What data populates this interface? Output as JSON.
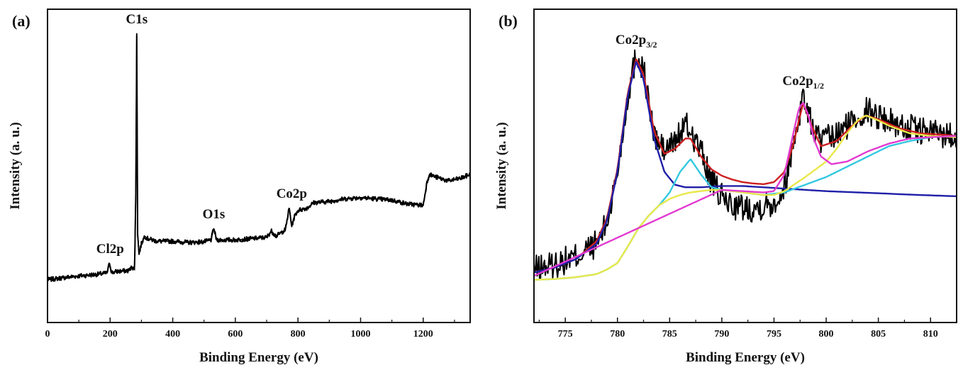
{
  "chart_data": [
    {
      "type": "line",
      "panel_label": "(a)",
      "xlabel": "Binding Energy (eV)",
      "ylabel": "Intensity (a. u.)",
      "xlim": [
        0,
        1350
      ],
      "ylim": [
        0,
        100
      ],
      "x_ticks": [
        0,
        200,
        400,
        600,
        800,
        1000,
        1200
      ],
      "y_ticks_shown": false,
      "grid": false,
      "series": [
        {
          "color": "#000000",
          "noisy": true,
          "x": [
            0,
            50,
            100,
            150,
            190,
            198,
            205,
            220,
            260,
            270,
            278,
            282,
            285,
            288,
            292,
            300,
            310,
            320,
            350,
            400,
            450,
            500,
            522,
            531,
            540,
            600,
            650,
            700,
            715,
            730,
            760,
            772,
            780,
            790,
            800,
            830,
            850,
            900,
            950,
            1000,
            1050,
            1100,
            1150,
            1200,
            1212,
            1220,
            1240,
            1280,
            1320,
            1350
          ],
          "y": [
            2,
            2.8,
            3.5,
            4,
            4.6,
            8.5,
            4.8,
            5.2,
            5.6,
            7,
            6,
            35,
            98,
            20,
            12,
            16,
            19,
            18,
            17,
            17,
            16.5,
            16.8,
            17.5,
            22,
            17.5,
            17.5,
            18,
            18.5,
            21,
            19,
            21.5,
            30,
            23,
            27,
            29,
            30,
            32,
            32.5,
            33.5,
            34,
            33.5,
            33,
            31.5,
            31,
            40,
            43,
            42,
            40.5,
            41.5,
            43
          ]
        }
      ],
      "annotations": [
        {
          "text": "Cl2p",
          "x": 200,
          "y": 8.5
        },
        {
          "text": "C1s",
          "x": 285,
          "y": 98
        },
        {
          "text": "O1s",
          "x": 531,
          "y": 22
        },
        {
          "text": "Co2p",
          "x": 780,
          "y": 30
        }
      ]
    },
    {
      "type": "line",
      "panel_label": "(b)",
      "xlabel": "Binding Energy (eV)",
      "ylabel": "Intensity (a. u.)",
      "xlim": [
        772,
        812.5
      ],
      "ylim": [
        0,
        100
      ],
      "x_ticks": [
        775,
        780,
        785,
        790,
        795,
        800,
        805,
        810
      ],
      "y_ticks_shown": false,
      "grid": false,
      "series": [
        {
          "color": "#000000",
          "noisy": true,
          "x": [
            772,
            774,
            776,
            778,
            779,
            780,
            781,
            781.8,
            782.5,
            783.5,
            784.5,
            785.5,
            786.5,
            787,
            788,
            789,
            790,
            791,
            792,
            793,
            794,
            795,
            796,
            796.8,
            797.8,
            798.6,
            799.5,
            801,
            802.5,
            803.8,
            805,
            807,
            809,
            811,
            812.5
          ],
          "y": [
            6,
            8,
            11,
            16,
            24,
            44,
            74,
            90,
            84,
            58,
            52,
            56,
            62,
            60,
            52,
            40,
            34,
            31,
            30,
            30,
            31,
            32,
            38,
            54,
            74,
            62,
            56,
            58,
            64,
            68,
            66,
            62,
            60,
            59,
            58
          ]
        },
        {
          "color": "#cc1f1f",
          "x": [
            772,
            774,
            776,
            778,
            779,
            780,
            781,
            781.8,
            782.5,
            783.5,
            784.5,
            785.5,
            786.5,
            787,
            788,
            789,
            790,
            791,
            792,
            793,
            794,
            795,
            796,
            796.8,
            797.8,
            798.6,
            799.5,
            801,
            802.5,
            803.8,
            805,
            807,
            809,
            811,
            812.5
          ],
          "y": [
            4.8,
            6.8,
            10,
            17,
            26,
            45,
            75,
            88,
            82,
            60,
            51,
            53,
            57,
            57,
            50,
            45,
            42.5,
            41,
            40,
            39.5,
            39.2,
            40,
            44,
            54,
            71,
            62,
            54,
            56,
            62,
            66,
            64.5,
            61,
            59,
            58.5,
            58
          ]
        },
        {
          "color": "#1f1fa8",
          "x": [
            772,
            774,
            776,
            778,
            779,
            780,
            781,
            781.8,
            782.5,
            783.5,
            784.5,
            785.5,
            786.5,
            788,
            790,
            792,
            794,
            796,
            798,
            800,
            803,
            806,
            809,
            812.5
          ],
          "y": [
            4.8,
            6.8,
            10,
            16,
            25,
            44,
            74,
            87,
            80,
            57,
            44,
            39,
            38,
            38,
            38.5,
            38.5,
            38,
            37.5,
            37,
            36.5,
            36,
            35.5,
            35,
            34.5
          ]
        },
        {
          "color": "#34c8e0",
          "x": [
            772,
            774,
            776,
            778,
            779,
            780,
            781,
            782,
            783,
            784,
            785,
            786,
            787,
            788,
            789,
            790,
            792,
            794,
            795,
            796,
            797,
            798,
            800,
            802,
            804,
            806,
            808,
            810,
            812.5
          ],
          "y": [
            2,
            2.3,
            3,
            4.2,
            6,
            8.5,
            15,
            22,
            27,
            31,
            36,
            44,
            49,
            43,
            38,
            37,
            36,
            35,
            35.5,
            36,
            37.5,
            39,
            42,
            46,
            50,
            54,
            56,
            57.5,
            58
          ]
        },
        {
          "color": "#e8e84a",
          "x": [
            772,
            774,
            776,
            778,
            779,
            780,
            781,
            782,
            783,
            784,
            785,
            786,
            787,
            788,
            789,
            790,
            792,
            794,
            795,
            796,
            798,
            800,
            801,
            802,
            803,
            803.8,
            805,
            806,
            808,
            810,
            812.5
          ],
          "y": [
            2,
            2.3,
            3,
            4.2,
            6,
            8.5,
            15,
            22,
            27,
            31,
            33.5,
            35,
            36,
            36.5,
            37,
            37,
            36,
            35,
            35,
            36.5,
            42,
            48,
            53,
            59,
            64,
            66,
            64,
            62,
            59,
            58,
            57.5
          ]
        },
        {
          "color": "#e23ad1",
          "x": [
            772,
            790,
            794,
            795,
            796,
            796.8,
            797.4,
            797.8,
            798.3,
            798.8,
            799.5,
            800.5,
            802,
            804,
            806,
            808,
            810,
            812.5
          ],
          "y": [
            3.5,
            37,
            36,
            36.5,
            43,
            58,
            69,
            71,
            66,
            57,
            50,
            47,
            48,
            52,
            55,
            57,
            57.5,
            58
          ]
        }
      ],
      "annotations": [
        {
          "text": "Co2p",
          "sub": "3/2",
          "x": 781.8,
          "y": 90
        },
        {
          "text": "Co2p",
          "sub": "1/2",
          "x": 797.8,
          "y": 74
        }
      ]
    }
  ]
}
